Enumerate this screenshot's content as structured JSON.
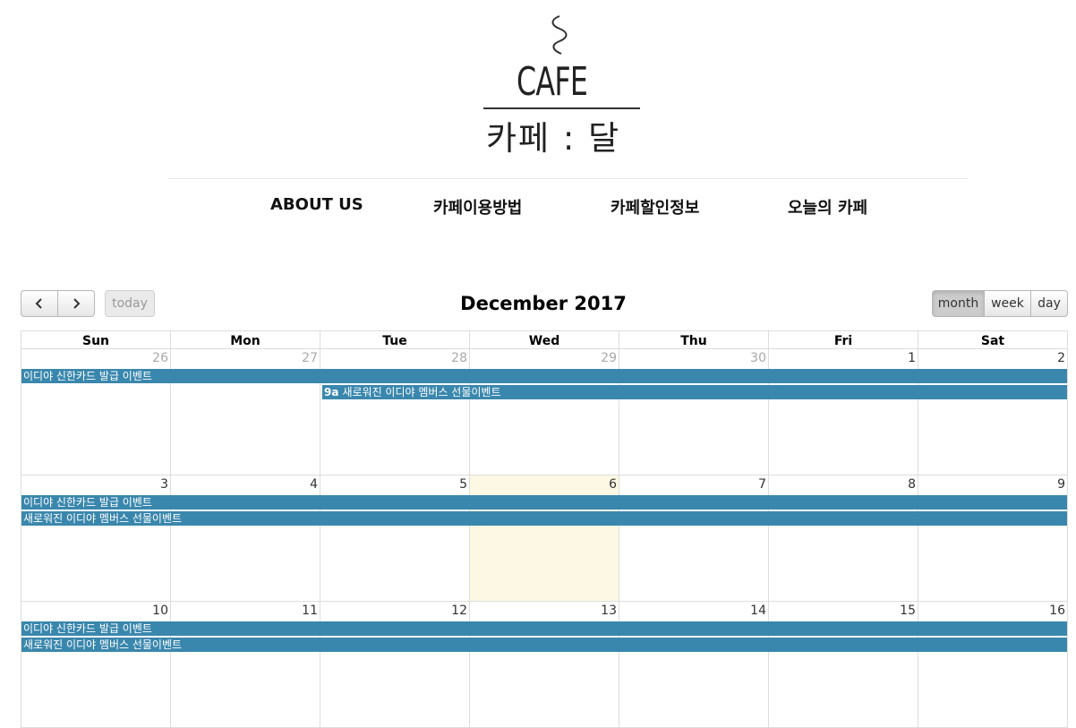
{
  "logo": {
    "word": "CAFE",
    "korean": "카페 : 달"
  },
  "nav": [
    {
      "label": "ABOUT US"
    },
    {
      "label": "카페이용방법"
    },
    {
      "label": "카페할인정보"
    },
    {
      "label": "오늘의 카페"
    }
  ],
  "toolbar": {
    "prev_icon": "chevron-left-icon",
    "next_icon": "chevron-right-icon",
    "today_label": "today",
    "title": "December 2017",
    "views": [
      "month",
      "week",
      "day"
    ],
    "active_view": "month"
  },
  "calendar": {
    "weekdays": [
      "Sun",
      "Mon",
      "Tue",
      "Wed",
      "Thu",
      "Fri",
      "Sat"
    ],
    "weeks": [
      {
        "days": [
          "26",
          "27",
          "28",
          "29",
          "30",
          "1",
          "2"
        ],
        "other_month": [
          true,
          true,
          true,
          true,
          true,
          false,
          false
        ],
        "events": [
          {
            "time": "",
            "title": "이디야 신한카드 발급 이벤트"
          },
          {
            "time": "9a",
            "title": "새로워진 이디야 멤버스 선물이벤트"
          }
        ]
      },
      {
        "days": [
          "3",
          "4",
          "5",
          "6",
          "7",
          "8",
          "9"
        ],
        "today_index": 3,
        "events": [
          {
            "time": "",
            "title": "이디야 신한카드 발급 이벤트"
          },
          {
            "time": "",
            "title": "새로워진 이디야 멤버스 선물이벤트"
          }
        ]
      },
      {
        "days": [
          "10",
          "11",
          "12",
          "13",
          "14",
          "15",
          "16"
        ],
        "events": [
          {
            "time": "",
            "title": "이디야 신한카드 발급 이벤트"
          },
          {
            "time": "",
            "title": "새로워진 이디야 멤버스 선물이벤트"
          }
        ]
      }
    ]
  },
  "colors": {
    "event": "#3a87ad",
    "today": "#fcf8e3",
    "border": "#dddddd"
  }
}
